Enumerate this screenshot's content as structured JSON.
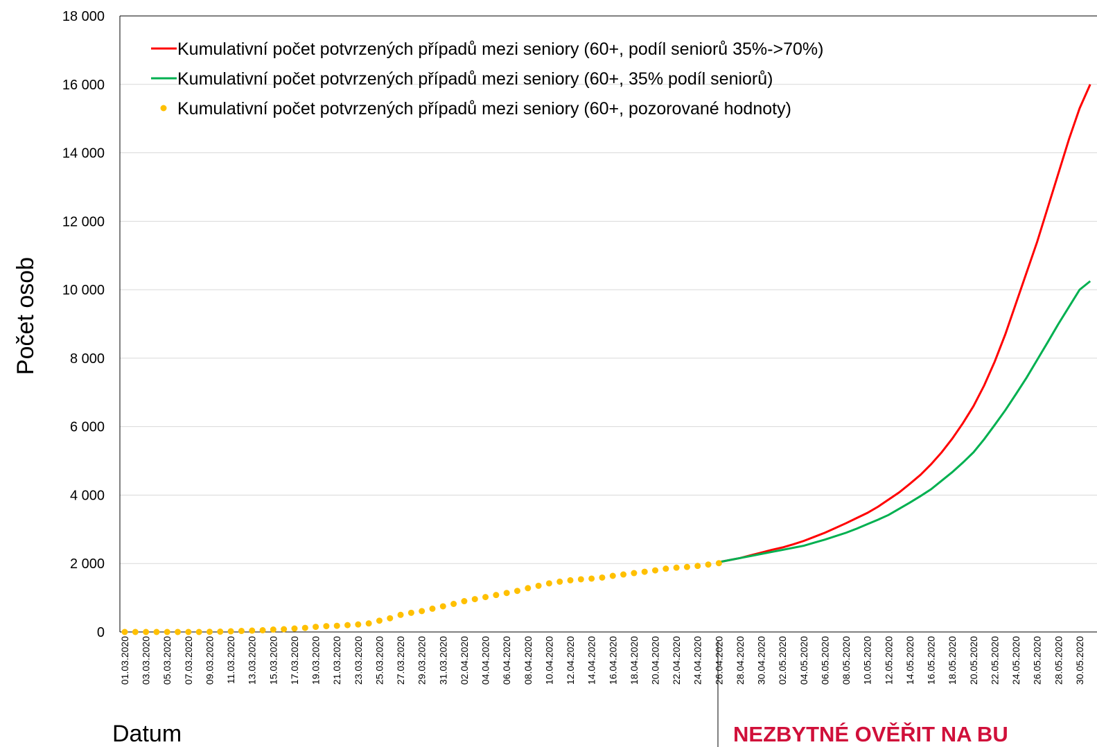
{
  "chart_data": {
    "type": "line",
    "y_label": "Počet osob",
    "x_label": "Datum",
    "annotation": "NEZBYTNÉ OVĚŘIT NA BU",
    "categories": [
      "01.03.2020",
      null,
      "03.03.2020",
      null,
      "05.03.2020",
      null,
      "07.03.2020",
      null,
      "09.03.2020",
      null,
      "11.03.2020",
      null,
      "13.03.2020",
      null,
      "15.03.2020",
      null,
      "17.03.2020",
      null,
      "19.03.2020",
      null,
      "21.03.2020",
      null,
      "23.03.2020",
      null,
      "25.03.2020",
      null,
      "27.03.2020",
      null,
      "29.03.2020",
      null,
      "31.03.2020",
      null,
      "02.04.2020",
      null,
      "04.04.2020",
      null,
      "06.04.2020",
      null,
      "08.04.2020",
      null,
      "10.04.2020",
      null,
      "12.04.2020",
      null,
      "14.04.2020",
      null,
      "16.04.2020",
      null,
      "18.04.2020",
      null,
      "20.04.2020",
      null,
      "22.04.2020",
      null,
      "24.04.2020",
      null,
      "26.04.2020",
      null,
      "28.04.2020",
      null,
      "30.04.2020",
      null,
      "02.05.2020",
      null,
      "04.05.2020",
      null,
      "06.05.2020",
      null,
      "08.05.2020",
      null,
      "10.05.2020",
      null,
      "12.05.2020",
      null,
      "14.05.2020",
      null,
      "16.05.2020",
      null,
      "18.05.2020",
      null,
      "20.05.2020",
      null,
      "22.05.2020",
      null,
      "24.05.2020",
      null,
      "26.05.2020",
      null,
      "28.05.2020",
      null,
      "30.05.2020",
      null
    ],
    "series": [
      {
        "name": "Kumulativní počet potvrzených případů mezi seniory (60+, podíl seniorů 35%->70%)",
        "color": "#ff0000",
        "style": "line",
        "values": [
          null,
          null,
          null,
          null,
          null,
          null,
          null,
          null,
          null,
          null,
          null,
          null,
          null,
          null,
          null,
          null,
          null,
          null,
          null,
          null,
          null,
          null,
          null,
          null,
          null,
          null,
          null,
          null,
          null,
          null,
          null,
          null,
          null,
          null,
          null,
          null,
          null,
          null,
          null,
          null,
          null,
          null,
          null,
          null,
          null,
          null,
          null,
          null,
          null,
          null,
          null,
          null,
          null,
          null,
          null,
          null,
          2040,
          2100,
          2160,
          2240,
          2320,
          2400,
          2470,
          2560,
          2660,
          2780,
          2900,
          3040,
          3180,
          3330,
          3480,
          3660,
          3870,
          4080,
          4330,
          4590,
          4900,
          5250,
          5650,
          6100,
          6600,
          7200,
          7900,
          8700,
          9600,
          10500,
          11400,
          12400,
          13400,
          14400,
          15300,
          16000
        ]
      },
      {
        "name": "Kumulativní počet potvrzených případů mezi seniory (60+, 35% podíl seniorů)",
        "color": "#00b050",
        "style": "line",
        "values": [
          null,
          null,
          null,
          null,
          null,
          null,
          null,
          null,
          null,
          null,
          null,
          null,
          null,
          null,
          null,
          null,
          null,
          null,
          null,
          null,
          null,
          null,
          null,
          null,
          null,
          null,
          null,
          null,
          null,
          null,
          null,
          null,
          null,
          null,
          null,
          null,
          null,
          null,
          null,
          null,
          null,
          null,
          null,
          null,
          null,
          null,
          null,
          null,
          null,
          null,
          null,
          null,
          null,
          null,
          null,
          null,
          2040,
          2100,
          2160,
          2220,
          2280,
          2340,
          2400,
          2460,
          2520,
          2610,
          2700,
          2800,
          2900,
          3020,
          3150,
          3280,
          3420,
          3600,
          3780,
          3970,
          4170,
          4420,
          4670,
          4950,
          5250,
          5630,
          6050,
          6480,
          6950,
          7430,
          7950,
          8470,
          9000,
          9500,
          10000,
          10250
        ]
      },
      {
        "name": "Kumulativní počet potvrzených případů mezi seniory (60+, pozorované hodnoty)",
        "color": "#ffc000",
        "style": "dots",
        "values": [
          0,
          0,
          0,
          0,
          0,
          0,
          0,
          0,
          5,
          10,
          20,
          30,
          40,
          50,
          70,
          80,
          100,
          120,
          150,
          170,
          180,
          200,
          220,
          250,
          330,
          400,
          500,
          560,
          610,
          680,
          750,
          820,
          900,
          960,
          1020,
          1080,
          1140,
          1200,
          1280,
          1350,
          1420,
          1470,
          1510,
          1540,
          1560,
          1590,
          1640,
          1680,
          1720,
          1760,
          1800,
          1850,
          1880,
          1900,
          1930,
          1970,
          2010,
          null,
          null,
          null,
          null,
          null,
          null,
          null,
          null,
          null,
          null,
          null,
          null,
          null,
          null,
          null,
          null,
          null,
          null,
          null,
          null,
          null,
          null,
          null,
          null,
          null,
          null,
          null,
          null,
          null,
          null,
          null,
          null,
          null,
          null,
          null
        ]
      }
    ],
    "ylim": [
      0,
      18000
    ],
    "yticks": [
      0,
      {
        "value": 2000,
        "label": "2 000"
      },
      {
        "value": 4000,
        "label": "4 000"
      },
      {
        "value": 6000,
        "label": "6 000"
      },
      {
        "value": 8000,
        "label": "8 000"
      },
      {
        "value": 10000,
        "label": "10 000"
      },
      {
        "value": 12000,
        "label": "12 000"
      },
      {
        "value": 14000,
        "label": "14 000"
      },
      {
        "value": 16000,
        "label": "16 000"
      },
      {
        "value": 18000,
        "label": "18 000"
      }
    ],
    "grid": true,
    "legend": "upper left"
  }
}
